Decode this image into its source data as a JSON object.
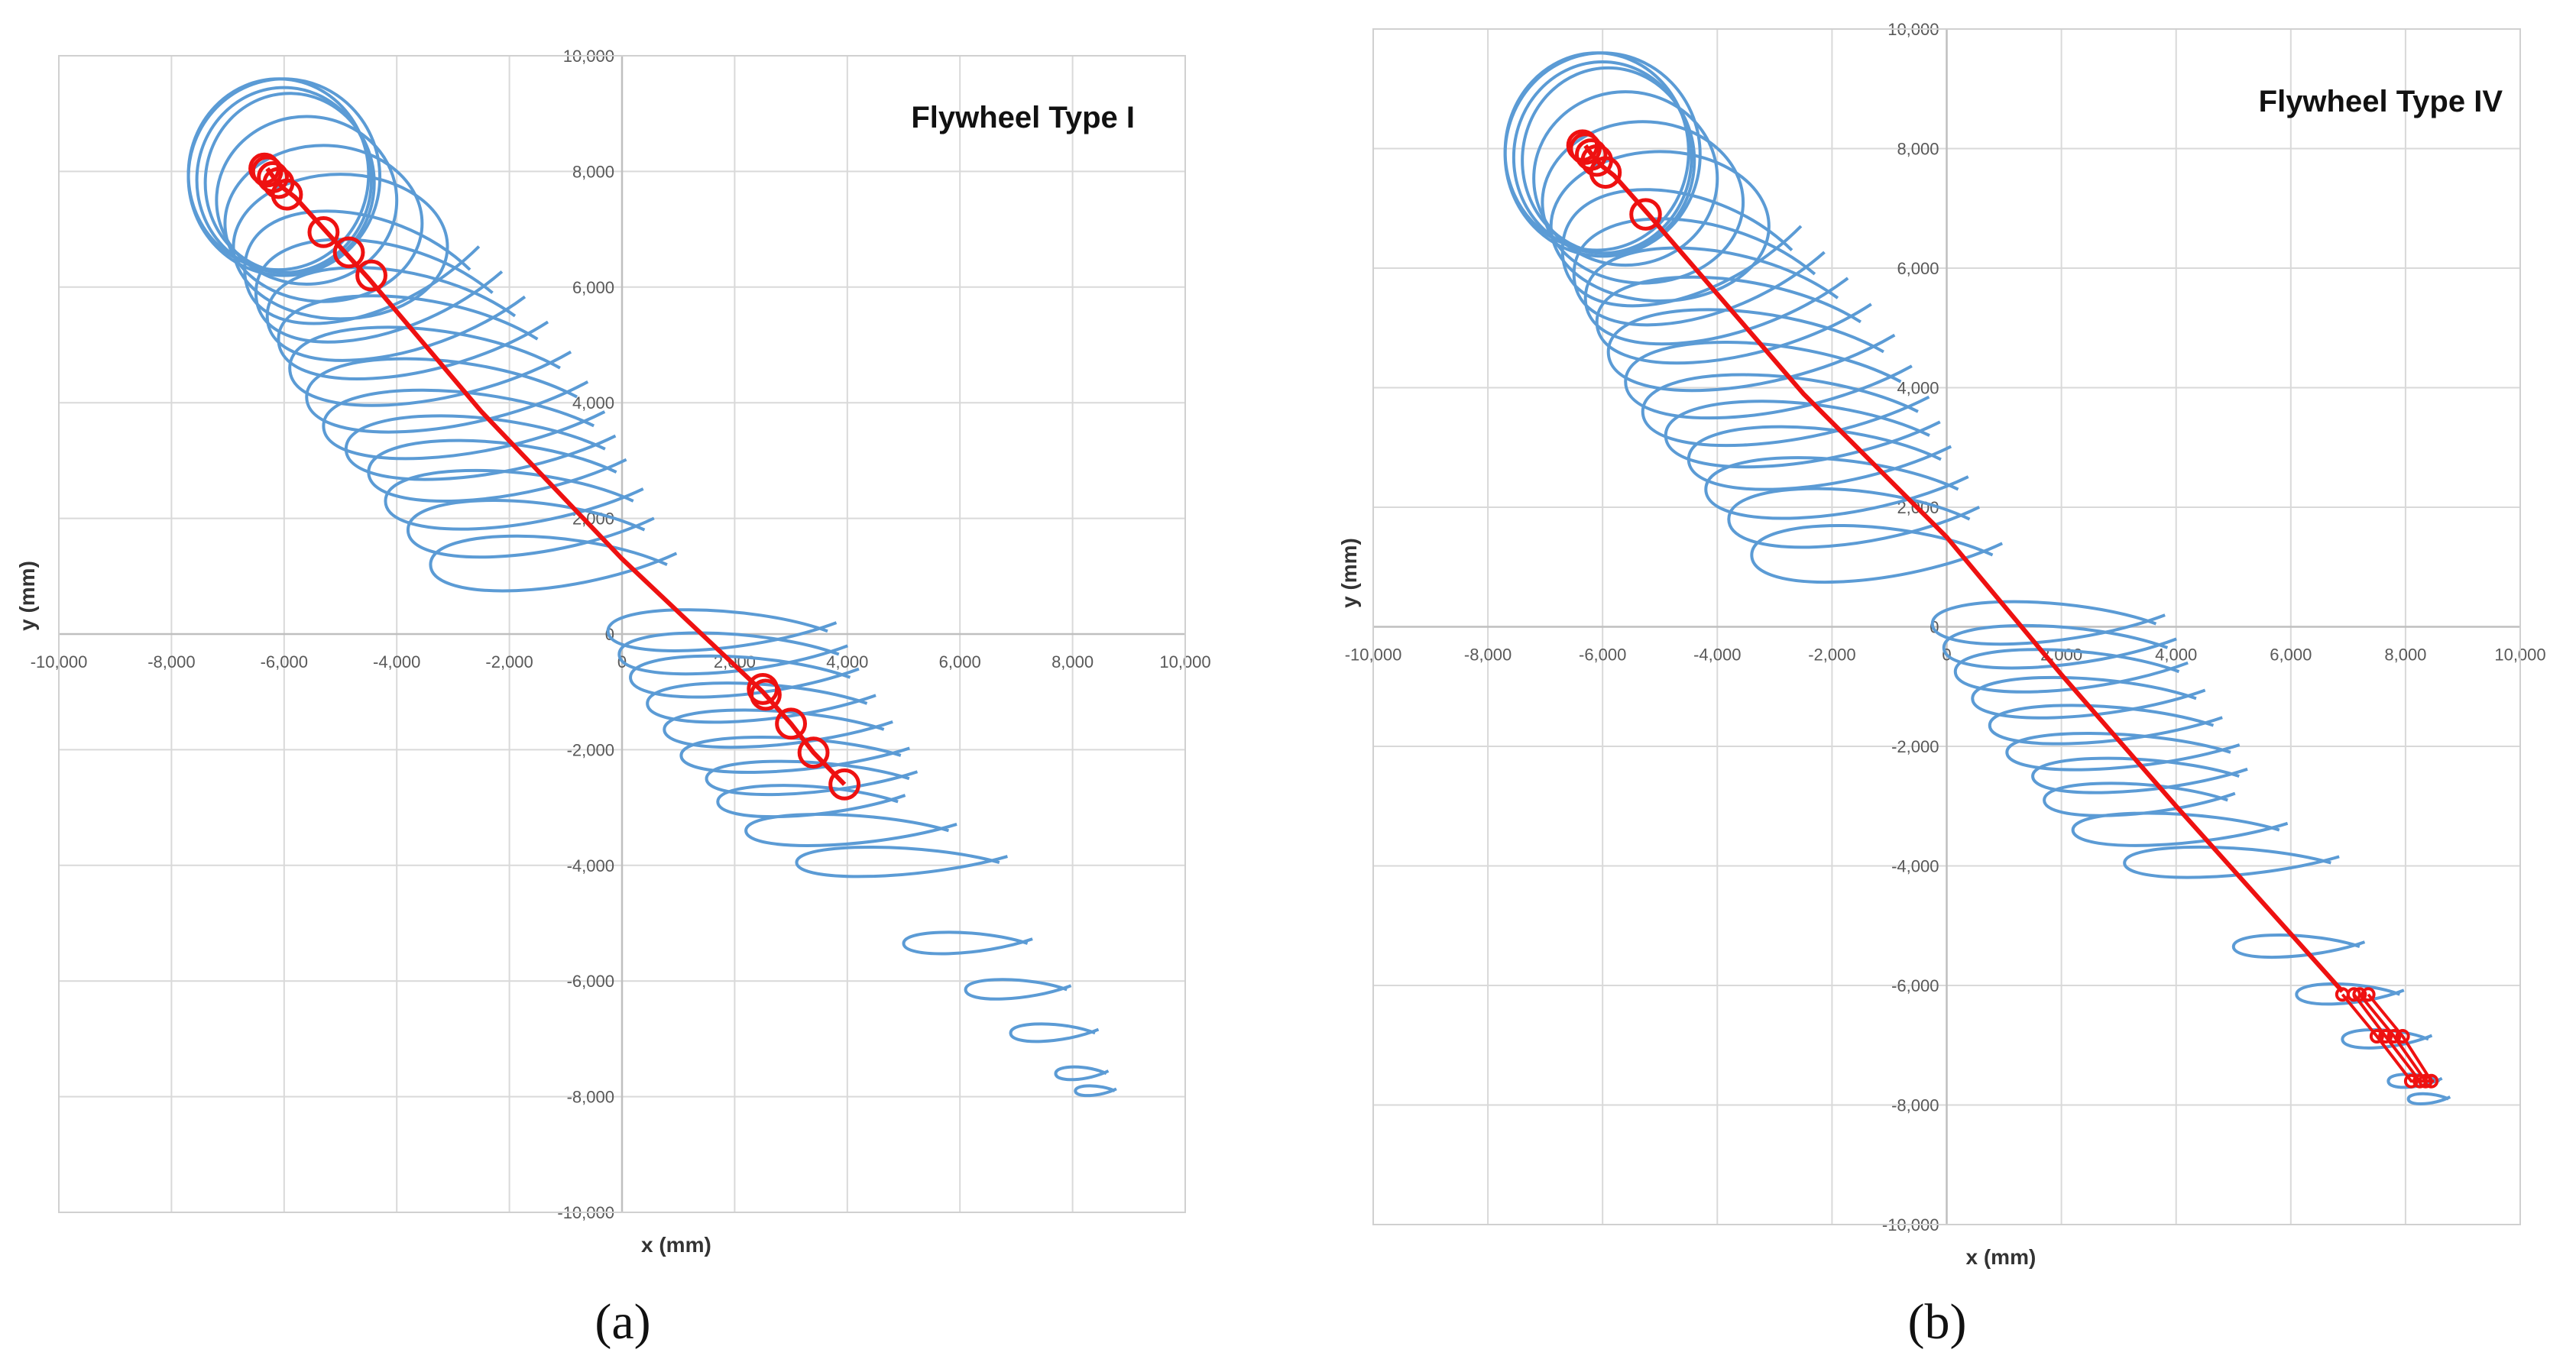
{
  "chart_data": [
    {
      "type": "scatter",
      "panel_label": "(a)",
      "title": "Flywheel Type I",
      "xlabel": "x (mm)",
      "ylabel": "y (mm)",
      "xlim": [
        -10000,
        10000
      ],
      "ylim": [
        -10000,
        10000
      ],
      "x_ticks": [
        -10000,
        -8000,
        -6000,
        -4000,
        -2000,
        0,
        2000,
        4000,
        6000,
        8000,
        10000
      ],
      "y_ticks": [
        -10000,
        -8000,
        -6000,
        -4000,
        -2000,
        0,
        2000,
        4000,
        6000,
        8000,
        10000
      ],
      "x_tick_labels": [
        "-10,000",
        "-8,000",
        "-6,000",
        "-4,000",
        "-2,000",
        "0",
        "2,000",
        "4,000",
        "6,000",
        "8,000",
        "10,000"
      ],
      "y_tick_labels": [
        "-10,000",
        "-8,000",
        "-6,000",
        "-4,000",
        "-2,000",
        "0",
        "2,000",
        "4,000",
        "6,000",
        "8,000",
        "10,000"
      ],
      "grid": true,
      "colors": {
        "loops": "#5b9bd5",
        "path": "#ee1111",
        "grid": "#d9d9d9"
      },
      "loops": [
        {
          "cx": -6000,
          "cy": 7900,
          "rx": 1700,
          "ry": 1700
        },
        {
          "cx": -6100,
          "cy": 7950,
          "rx": 1600,
          "ry": 1650
        },
        {
          "cx": -6000,
          "cy": 7850,
          "rx": 1550,
          "ry": 1600
        },
        {
          "cx": -5900,
          "cy": 7800,
          "rx": 1500,
          "ry": 1550
        },
        {
          "cx": -5600,
          "cy": 7500,
          "rx": 1600,
          "ry": 1450
        },
        {
          "cx": -5300,
          "cy": 7100,
          "rx": 1750,
          "ry": 1350
        },
        {
          "cx": -5000,
          "cy": 6700,
          "rx": 1900,
          "ry": 1250
        },
        {
          "cx": -4700,
          "cy": 6300,
          "rx": 2000,
          "ry": 1150
        },
        {
          "cx": -4400,
          "cy": 5900,
          "rx": 2100,
          "ry": 1050
        },
        {
          "cx": -4100,
          "cy": 5500,
          "rx": 2200,
          "ry": 950
        },
        {
          "cx": -3800,
          "cy": 5100,
          "rx": 2300,
          "ry": 850
        },
        {
          "cx": -3500,
          "cy": 4600,
          "rx": 2400,
          "ry": 800
        },
        {
          "cx": -3200,
          "cy": 4100,
          "rx": 2400,
          "ry": 750
        },
        {
          "cx": -2900,
          "cy": 3600,
          "rx": 2400,
          "ry": 700
        },
        {
          "cx": -2600,
          "cy": 3200,
          "rx": 2300,
          "ry": 650
        },
        {
          "cx": -2300,
          "cy": 2800,
          "rx": 2200,
          "ry": 620
        },
        {
          "cx": -2000,
          "cy": 2300,
          "rx": 2200,
          "ry": 600
        },
        {
          "cx": -1700,
          "cy": 1800,
          "rx": 2100,
          "ry": 580
        },
        {
          "cx": -1300,
          "cy": 1200,
          "rx": 2100,
          "ry": 560
        },
        {
          "cx": 1700,
          "cy": 50,
          "rx": 1950,
          "ry": 420
        },
        {
          "cx": 1900,
          "cy": -350,
          "rx": 1950,
          "ry": 420
        },
        {
          "cx": 2100,
          "cy": -750,
          "rx": 1950,
          "ry": 420
        },
        {
          "cx": 2400,
          "cy": -1200,
          "rx": 1950,
          "ry": 400
        },
        {
          "cx": 2700,
          "cy": -1650,
          "rx": 1950,
          "ry": 380
        },
        {
          "cx": 3000,
          "cy": -2100,
          "rx": 1950,
          "ry": 360
        },
        {
          "cx": 3300,
          "cy": -2500,
          "rx": 1800,
          "ry": 340
        },
        {
          "cx": 3300,
          "cy": -2900,
          "rx": 1600,
          "ry": 320
        },
        {
          "cx": 4000,
          "cy": -3400,
          "rx": 1800,
          "ry": 320
        },
        {
          "cx": 4900,
          "cy": -3950,
          "rx": 1800,
          "ry": 300
        },
        {
          "cx": 6100,
          "cy": -5350,
          "rx": 1100,
          "ry": 220
        },
        {
          "cx": 7000,
          "cy": -6150,
          "rx": 900,
          "ry": 200
        },
        {
          "cx": 7650,
          "cy": -6900,
          "rx": 750,
          "ry": 180
        },
        {
          "cx": 8150,
          "cy": -7600,
          "rx": 450,
          "ry": 130
        },
        {
          "cx": 8400,
          "cy": -7900,
          "rx": 350,
          "ry": 100
        }
      ],
      "path": {
        "x": [
          -6300,
          -6150,
          -6000,
          -5800,
          -4500,
          -2500,
          0,
          2500,
          3000,
          3400,
          3950
        ],
        "y": [
          8050,
          7850,
          7700,
          7550,
          6150,
          3850,
          1300,
          -1000,
          -1550,
          -2050,
          -2600
        ]
      },
      "markers": {
        "x": [
          -6350,
          -6300,
          -6200,
          -6100,
          -5950,
          -5300,
          -4850,
          -4450,
          2500,
          2550,
          3000,
          3400,
          3950
        ],
        "y": [
          8050,
          8000,
          7900,
          7800,
          7600,
          6950,
          6600,
          6200,
          -950,
          -1050,
          -1550,
          -2050,
          -2600
        ],
        "r": 250
      }
    },
    {
      "type": "scatter",
      "panel_label": "(b)",
      "title": "Flywheel Type IV",
      "xlabel": "x (mm)",
      "ylabel": "y (mm)",
      "xlim": [
        -10000,
        10000
      ],
      "ylim": [
        -10000,
        10000
      ],
      "x_ticks": [
        -10000,
        -8000,
        -6000,
        -4000,
        -2000,
        0,
        2000,
        4000,
        6000,
        8000,
        10000
      ],
      "y_ticks": [
        -10000,
        -8000,
        -6000,
        -4000,
        -2000,
        0,
        2000,
        4000,
        6000,
        8000,
        10000
      ],
      "x_tick_labels": [
        "-10,000",
        "-8,000",
        "-6,000",
        "-4,000",
        "-2,000",
        "0",
        "2,000",
        "4,000",
        "6,000",
        "8,000",
        "10,000"
      ],
      "y_tick_labels": [
        "-10,000",
        "-8,000",
        "-6,000",
        "-4,000",
        "-2,000",
        "0",
        "2,000",
        "4,000",
        "6,000",
        "8,000",
        "10,000"
      ],
      "grid": true,
      "colors": {
        "loops": "#5b9bd5",
        "path": "#ee1111",
        "grid": "#d9d9d9"
      },
      "loops": [
        {
          "cx": -6000,
          "cy": 7900,
          "rx": 1700,
          "ry": 1700
        },
        {
          "cx": -6100,
          "cy": 7950,
          "rx": 1600,
          "ry": 1650
        },
        {
          "cx": -6000,
          "cy": 7850,
          "rx": 1550,
          "ry": 1600
        },
        {
          "cx": -5900,
          "cy": 7800,
          "rx": 1500,
          "ry": 1550
        },
        {
          "cx": -5600,
          "cy": 7500,
          "rx": 1600,
          "ry": 1450
        },
        {
          "cx": -5300,
          "cy": 7100,
          "rx": 1750,
          "ry": 1350
        },
        {
          "cx": -5000,
          "cy": 6700,
          "rx": 1900,
          "ry": 1250
        },
        {
          "cx": -4700,
          "cy": 6300,
          "rx": 2000,
          "ry": 1150
        },
        {
          "cx": -4400,
          "cy": 5900,
          "rx": 2100,
          "ry": 1050
        },
        {
          "cx": -4100,
          "cy": 5500,
          "rx": 2200,
          "ry": 950
        },
        {
          "cx": -3800,
          "cy": 5100,
          "rx": 2300,
          "ry": 850
        },
        {
          "cx": -3500,
          "cy": 4600,
          "rx": 2400,
          "ry": 800
        },
        {
          "cx": -3200,
          "cy": 4100,
          "rx": 2400,
          "ry": 750
        },
        {
          "cx": -2900,
          "cy": 3600,
          "rx": 2400,
          "ry": 700
        },
        {
          "cx": -2600,
          "cy": 3200,
          "rx": 2300,
          "ry": 650
        },
        {
          "cx": -2300,
          "cy": 2800,
          "rx": 2200,
          "ry": 620
        },
        {
          "cx": -2000,
          "cy": 2300,
          "rx": 2200,
          "ry": 600
        },
        {
          "cx": -1700,
          "cy": 1800,
          "rx": 2100,
          "ry": 580
        },
        {
          "cx": -1300,
          "cy": 1200,
          "rx": 2100,
          "ry": 560
        },
        {
          "cx": 1700,
          "cy": 50,
          "rx": 1950,
          "ry": 420
        },
        {
          "cx": 1900,
          "cy": -350,
          "rx": 1950,
          "ry": 420
        },
        {
          "cx": 2100,
          "cy": -750,
          "rx": 1950,
          "ry": 420
        },
        {
          "cx": 2400,
          "cy": -1200,
          "rx": 1950,
          "ry": 400
        },
        {
          "cx": 2700,
          "cy": -1650,
          "rx": 1950,
          "ry": 380
        },
        {
          "cx": 3000,
          "cy": -2100,
          "rx": 1950,
          "ry": 360
        },
        {
          "cx": 3300,
          "cy": -2500,
          "rx": 1800,
          "ry": 340
        },
        {
          "cx": 3300,
          "cy": -2900,
          "rx": 1600,
          "ry": 320
        },
        {
          "cx": 4000,
          "cy": -3400,
          "rx": 1800,
          "ry": 320
        },
        {
          "cx": 4900,
          "cy": -3950,
          "rx": 1800,
          "ry": 300
        },
        {
          "cx": 6100,
          "cy": -5350,
          "rx": 1100,
          "ry": 220
        },
        {
          "cx": 7000,
          "cy": -6150,
          "rx": 900,
          "ry": 200
        },
        {
          "cx": 7650,
          "cy": -6900,
          "rx": 750,
          "ry": 180
        },
        {
          "cx": 8150,
          "cy": -7600,
          "rx": 450,
          "ry": 130
        },
        {
          "cx": 8400,
          "cy": -7900,
          "rx": 350,
          "ry": 100
        }
      ],
      "path": {
        "x": [
          -6300,
          -6150,
          -6000,
          -5800,
          -5200,
          -2500,
          0,
          2000,
          4000,
          6900
        ],
        "y": [
          8050,
          7850,
          7700,
          7550,
          6900,
          3900,
          1500,
          -800,
          -3000,
          -6100
        ]
      },
      "markers": {
        "x": [
          -6350,
          -6300,
          -6200,
          -6100,
          -5950,
          -5250
        ],
        "y": [
          8050,
          8000,
          7900,
          7800,
          7600,
          6900
        ],
        "r": 250
      },
      "end_paths": [
        {
          "x": [
            6900,
            7500,
            8100,
            8500
          ],
          "y": [
            -6150,
            -6850,
            -7600,
            -7600
          ]
        },
        {
          "x": [
            7100,
            7650,
            8250
          ],
          "y": [
            -6150,
            -6850,
            -7600
          ]
        },
        {
          "x": [
            7200,
            7800,
            8350
          ],
          "y": [
            -6150,
            -6850,
            -7600
          ]
        },
        {
          "x": [
            7350,
            7950,
            8450
          ],
          "y": [
            -6150,
            -6850,
            -7600
          ]
        }
      ],
      "end_markers": {
        "x": [
          6900,
          7100,
          7200,
          7350,
          7500,
          7650,
          7800,
          7950,
          8100,
          8250,
          8350,
          8450
        ],
        "y": [
          -6150,
          -6150,
          -6150,
          -6150,
          -6850,
          -6850,
          -6850,
          -6850,
          -7600,
          -7600,
          -7600,
          -7600
        ],
        "r": 100
      }
    }
  ]
}
